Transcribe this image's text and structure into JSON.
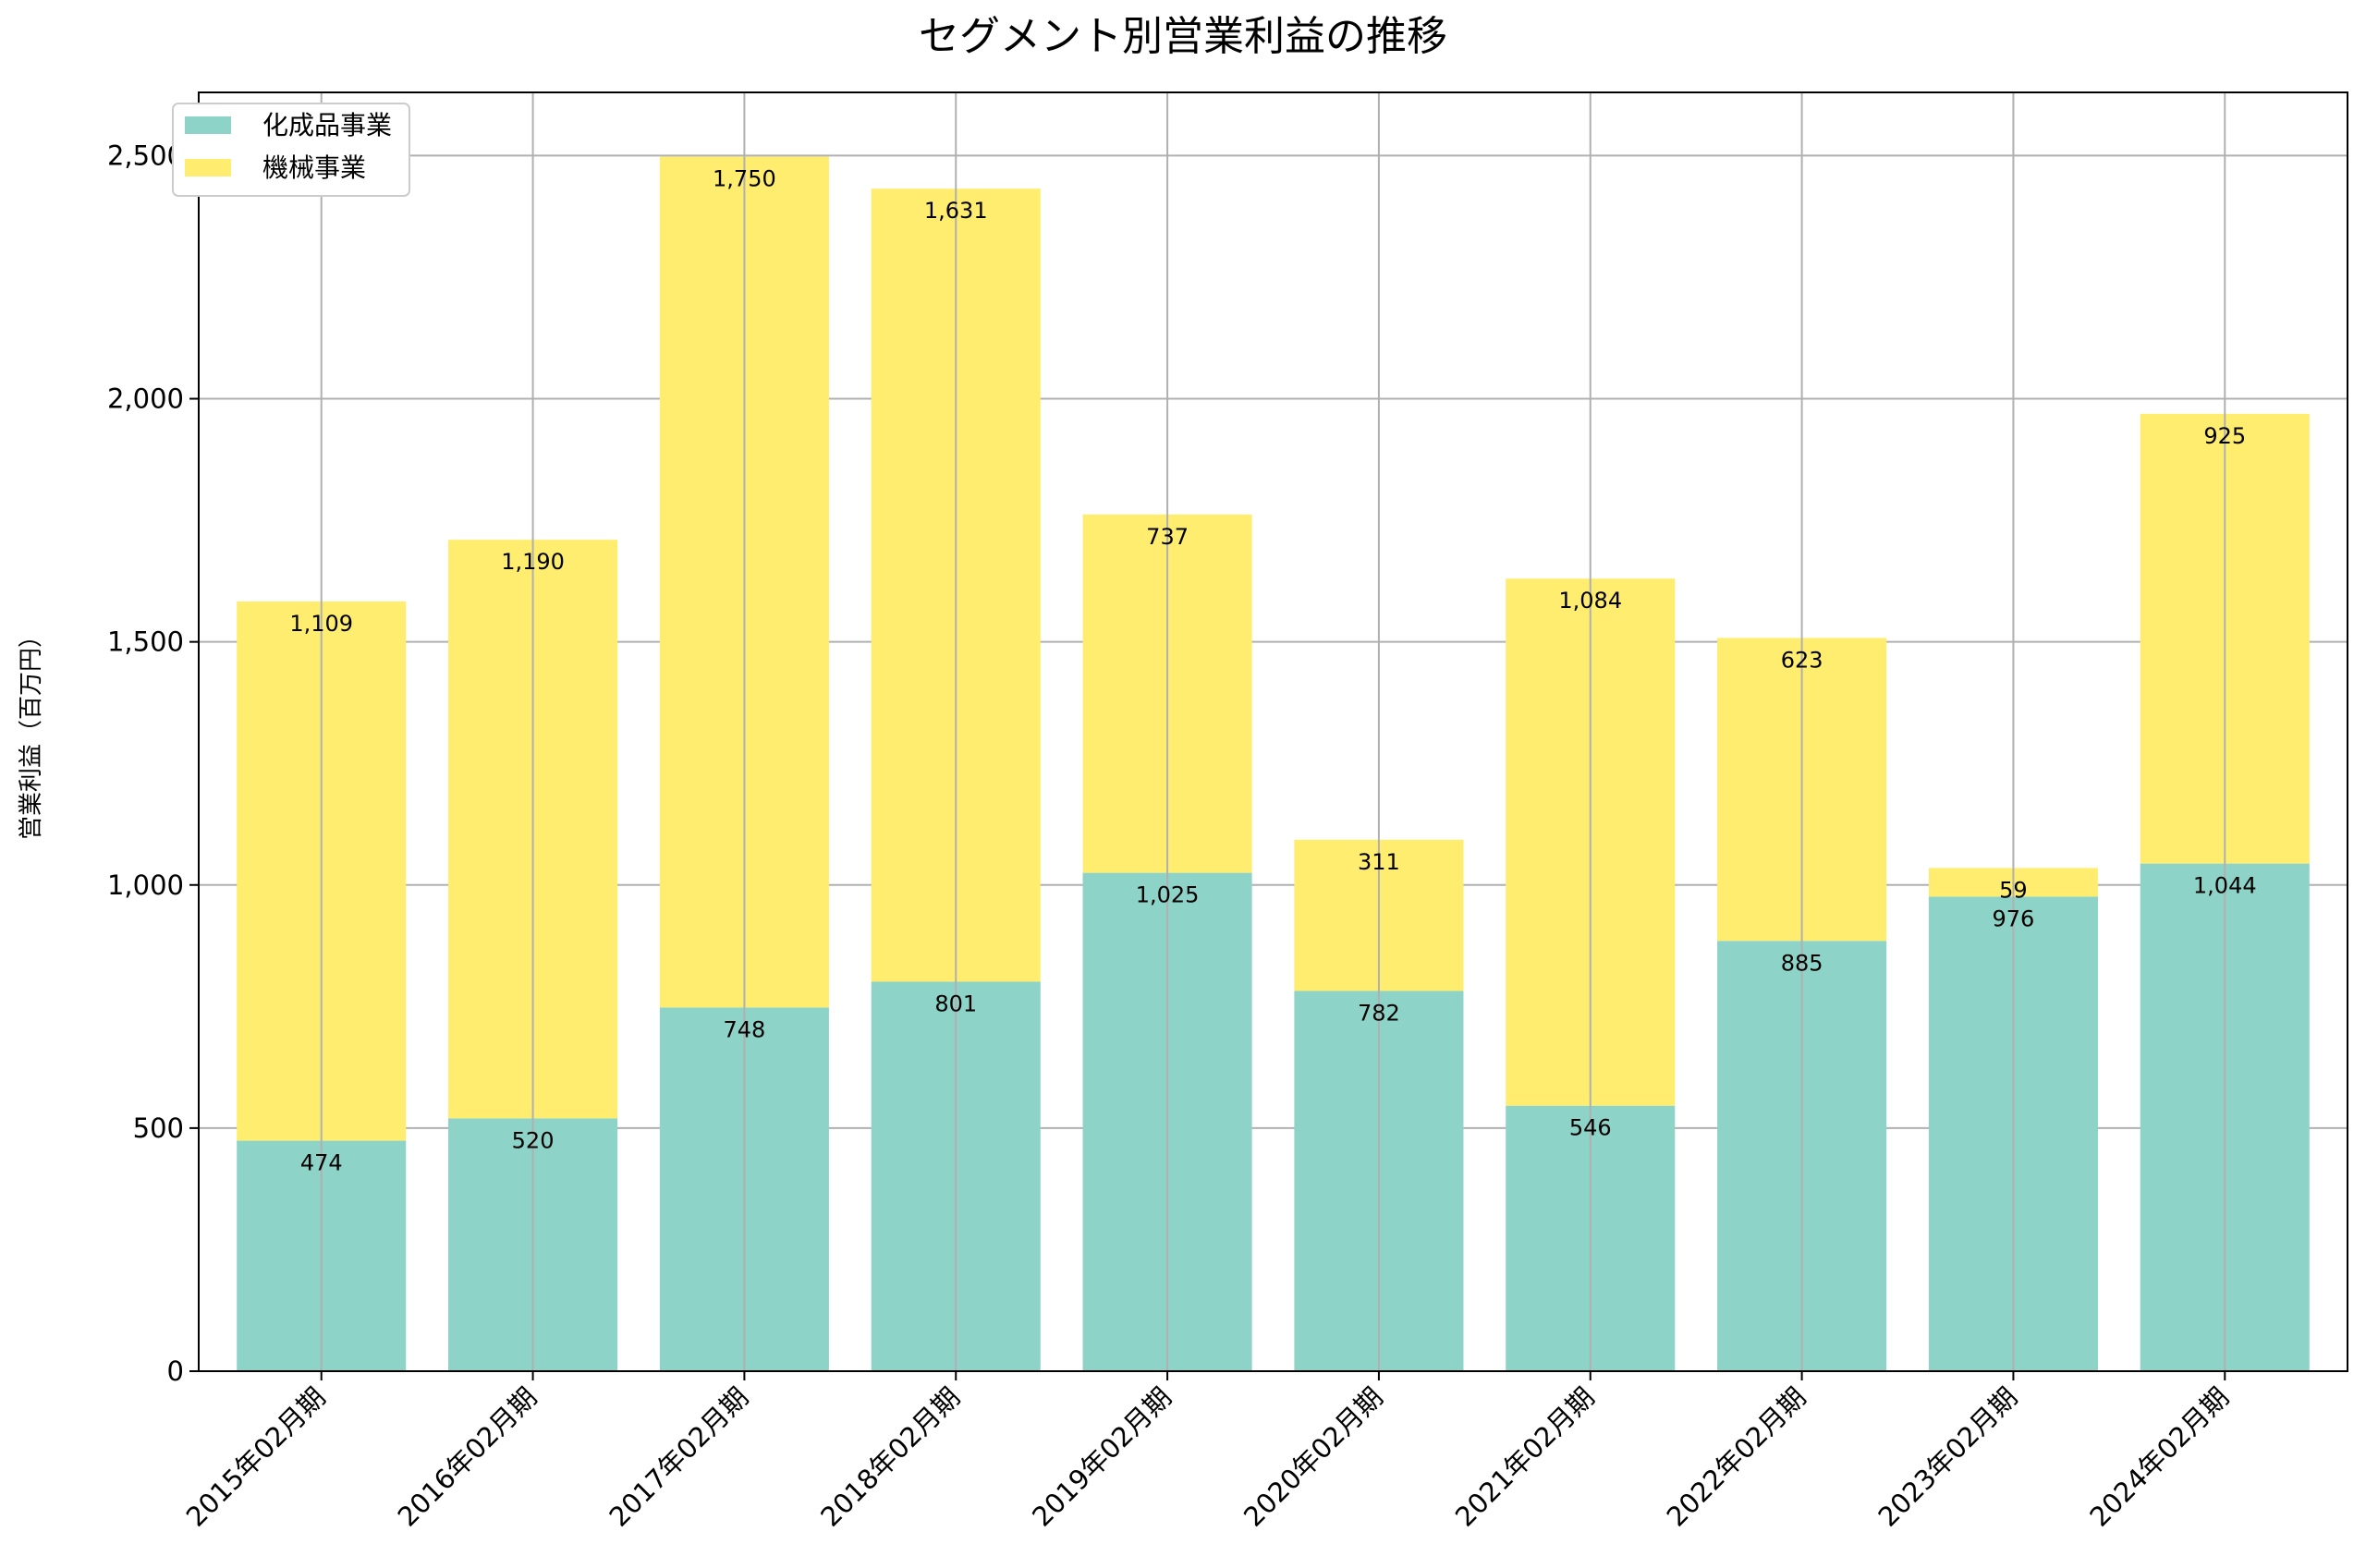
{
  "chart_data": {
    "type": "bar",
    "stacked": true,
    "title": "セグメント別営業利益の推移",
    "ylabel": "営業利益（百万円）",
    "xlabel": "",
    "categories": [
      "2015年02月期",
      "2016年02月期",
      "2017年02月期",
      "2018年02月期",
      "2019年02月期",
      "2020年02月期",
      "2021年02月期",
      "2022年02月期",
      "2023年02月期",
      "2024年02月期"
    ],
    "series": [
      {
        "name": "化成品事業",
        "color": "#8dd3c7",
        "values": [
          474,
          520,
          748,
          801,
          1025,
          782,
          546,
          885,
          976,
          1044
        ]
      },
      {
        "name": "機械事業",
        "color": "#ffed6f",
        "values": [
          1109,
          1190,
          1750,
          1631,
          737,
          311,
          1084,
          623,
          59,
          925
        ]
      }
    ],
    "ylim": [
      0,
      2630
    ],
    "yticks": [
      0,
      500,
      1000,
      1500,
      2000,
      2500
    ],
    "ytick_labels": [
      "0",
      "500",
      "1,000",
      "1,500",
      "2,000",
      "2,500"
    ],
    "grid": true,
    "legend_position": "top-left"
  }
}
